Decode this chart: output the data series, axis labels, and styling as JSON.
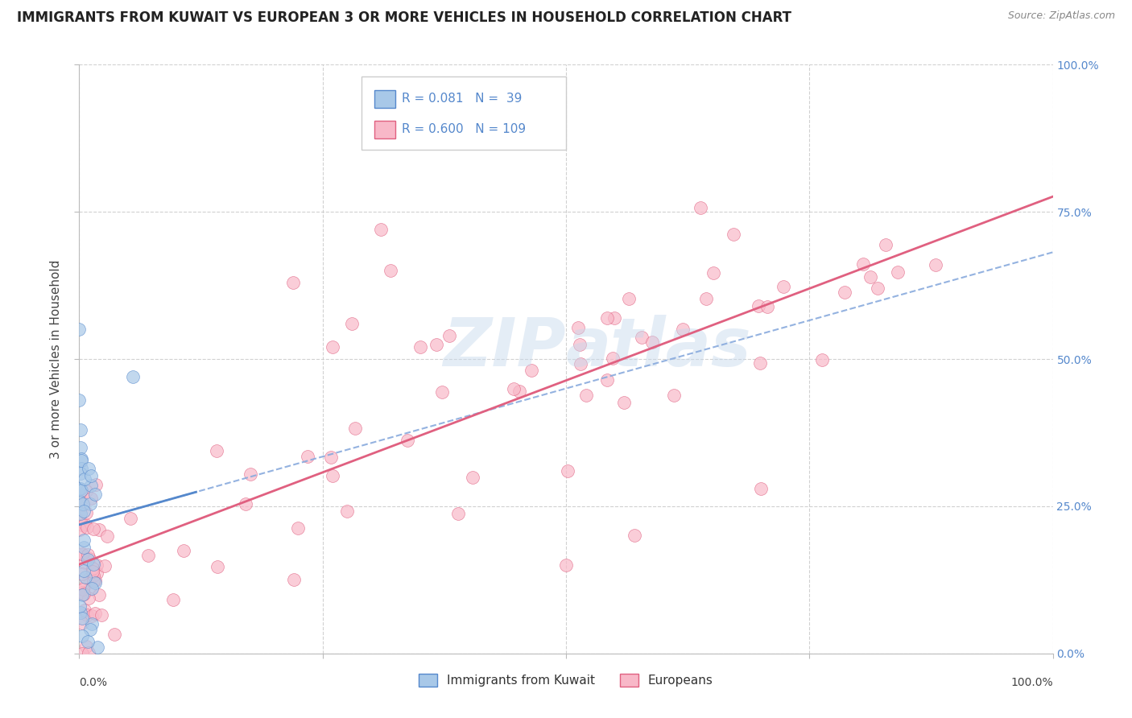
{
  "title": "IMMIGRANTS FROM KUWAIT VS EUROPEAN 3 OR MORE VEHICLES IN HOUSEHOLD CORRELATION CHART",
  "source": "Source: ZipAtlas.com",
  "ylabel": "3 or more Vehicles in Household",
  "legend_label_1": "Immigrants from Kuwait",
  "legend_label_2": "Europeans",
  "legend_r1": "R = 0.081",
  "legend_n1": "N =  39",
  "legend_r2": "R = 0.600",
  "legend_n2": "N = 109",
  "color_blue_fill": "#a8c8e8",
  "color_blue_edge": "#5588cc",
  "color_pink_fill": "#f8b8c8",
  "color_pink_edge": "#e06080",
  "color_blue_line": "#5588cc",
  "color_pink_line": "#e06080",
  "color_dashed": "#88aadd",
  "background_color": "#ffffff",
  "grid_color": "#cccccc",
  "watermark": "ZIPAtlas",
  "title_fontsize": 12,
  "axis_label_fontsize": 11,
  "tick_fontsize": 10,
  "right_tick_color": "#5588cc"
}
